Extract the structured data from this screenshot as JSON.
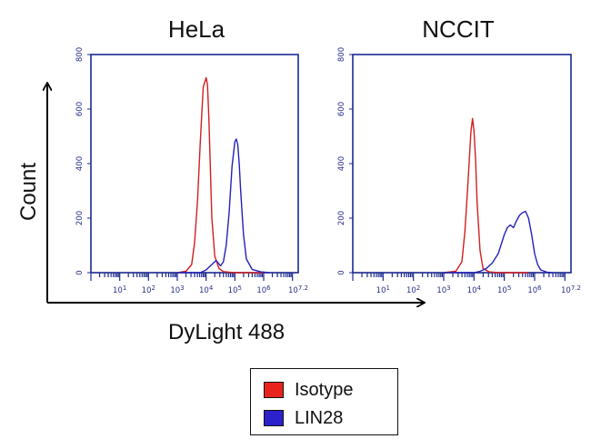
{
  "colors": {
    "isotype": "#d21f1f",
    "lin28": "#2222b8",
    "axis": "#1c2a8f",
    "tick_blue": "#2a2f8a"
  },
  "y_axis_title": "Count",
  "x_axis_title": "DyLight 488",
  "legend": {
    "items": [
      {
        "label": "Isotype",
        "color": "#e8231e"
      },
      {
        "label": "LIN28",
        "color": "#2b22cc"
      }
    ]
  },
  "chart_data": [
    {
      "type": "line",
      "title": "HeLa",
      "xlabel": "DyLight 488",
      "ylabel": "Count",
      "x_scale": "log",
      "xlim": [
        1,
        15848932
      ],
      "ylim": [
        0,
        800
      ],
      "yticks": [
        0,
        200,
        400,
        600,
        800
      ],
      "xtick_labels": [
        "10^1",
        "10^2",
        "10^3",
        "10^4",
        "10^5",
        "10^6",
        "10^7.2"
      ],
      "series": [
        {
          "name": "Isotype",
          "color": "#d21f1f",
          "x_log10": [
            3.0,
            3.3,
            3.5,
            3.6,
            3.7,
            3.8,
            3.9,
            4.0,
            4.05,
            4.1,
            4.15,
            4.2,
            4.3,
            4.45,
            4.6,
            4.8,
            5.0,
            5.3,
            5.6,
            6.0
          ],
          "y": [
            0,
            5,
            30,
            110,
            260,
            480,
            680,
            715,
            690,
            560,
            380,
            200,
            60,
            15,
            4,
            2,
            0,
            0,
            0,
            0
          ]
        },
        {
          "name": "LIN28",
          "color": "#2222b8",
          "x_log10": [
            3.0,
            3.8,
            4.0,
            4.2,
            4.35,
            4.5,
            4.6,
            4.7,
            4.8,
            4.9,
            5.0,
            5.05,
            5.1,
            5.15,
            5.2,
            5.3,
            5.4,
            5.6,
            5.9,
            6.2
          ],
          "y": [
            0,
            0,
            10,
            30,
            45,
            25,
            40,
            100,
            220,
            390,
            480,
            490,
            470,
            400,
            300,
            140,
            50,
            12,
            3,
            0
          ]
        }
      ]
    },
    {
      "type": "line",
      "title": "NCCIT",
      "xlabel": "DyLight 488",
      "ylabel": "Count",
      "x_scale": "log",
      "xlim": [
        1,
        15848932
      ],
      "ylim": [
        0,
        800
      ],
      "yticks": [
        0,
        200,
        400,
        600,
        800
      ],
      "xtick_labels": [
        "10^1",
        "10^2",
        "10^3",
        "10^4",
        "10^5",
        "10^6",
        "10^7.2"
      ],
      "series": [
        {
          "name": "Isotype",
          "color": "#d21f1f",
          "x_log10": [
            3.0,
            3.4,
            3.6,
            3.7,
            3.8,
            3.9,
            3.95,
            4.0,
            4.05,
            4.1,
            4.2,
            4.3,
            4.5,
            4.8,
            5.2,
            5.8
          ],
          "y": [
            0,
            5,
            40,
            150,
            330,
            520,
            565,
            520,
            420,
            260,
            80,
            15,
            3,
            0,
            0,
            0
          ]
        },
        {
          "name": "LIN28",
          "color": "#2222b8",
          "x_log10": [
            3.0,
            4.0,
            4.2,
            4.4,
            4.6,
            4.8,
            5.0,
            5.1,
            5.2,
            5.3,
            5.4,
            5.5,
            5.6,
            5.7,
            5.8,
            5.9,
            6.0,
            6.1,
            6.2,
            6.4,
            6.6
          ],
          "y": [
            0,
            0,
            5,
            15,
            35,
            70,
            140,
            165,
            175,
            165,
            190,
            210,
            220,
            225,
            200,
            140,
            70,
            30,
            10,
            2,
            0
          ]
        }
      ]
    }
  ]
}
